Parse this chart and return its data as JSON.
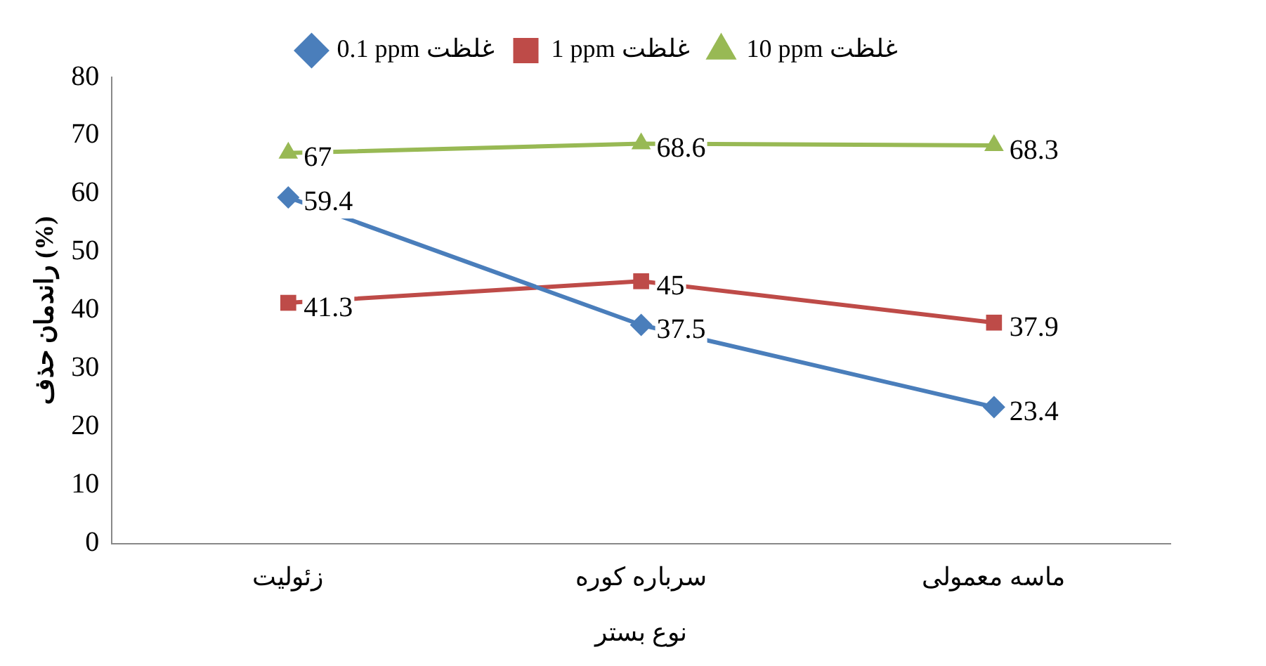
{
  "chart_data": {
    "type": "line",
    "xlabel": "نوع بستر",
    "ylabel": "راندمان حذف (%)",
    "categories": [
      "زئولیت",
      "سرباره کوره",
      "ماسه معمولی"
    ],
    "series": [
      {
        "name": "0.1 ppm غلظت",
        "color": "#4a7ebb",
        "marker": "diamond",
        "values": [
          59.4,
          37.5,
          23.4
        ]
      },
      {
        "name": "1 ppm غلظت",
        "color": "#be4b48",
        "marker": "square",
        "values": [
          41.3,
          45,
          37.9
        ]
      },
      {
        "name": "10 ppm غلظت",
        "color": "#98b954",
        "marker": "triangle",
        "values": [
          67,
          68.6,
          68.3
        ]
      }
    ],
    "ylim": [
      0,
      80
    ],
    "yticks": [
      0,
      10,
      20,
      30,
      40,
      50,
      60,
      70,
      80
    ],
    "grid": false,
    "legend": "top",
    "data_labels": true,
    "line_style": "solid"
  }
}
